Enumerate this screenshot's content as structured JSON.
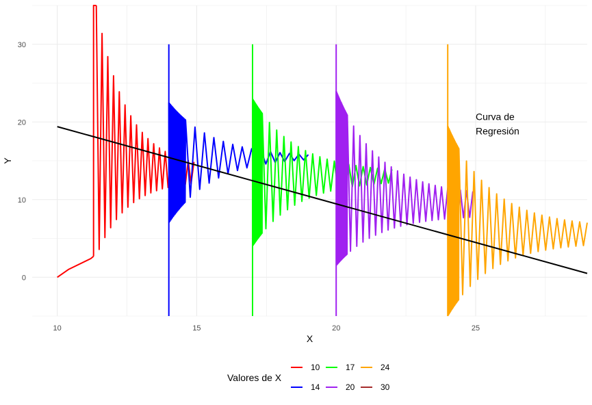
{
  "chart_data": {
    "type": "line",
    "title": "",
    "xlabel": "X",
    "ylabel": "Y",
    "xlim": [
      9.1,
      29
    ],
    "ylim": [
      -5,
      35
    ],
    "x_ticks": [
      10,
      15,
      20,
      25
    ],
    "y_ticks": [
      0,
      10,
      20,
      30
    ],
    "grid": true,
    "legend": {
      "title": "Valores de X",
      "position": "bottom",
      "entries": [
        {
          "label": "10",
          "color": "#ff0000"
        },
        {
          "label": "14",
          "color": "#0000ff"
        },
        {
          "label": "17",
          "color": "#00ff00"
        },
        {
          "label": "20",
          "color": "#a020f0"
        },
        {
          "label": "24",
          "color": "#ffa500"
        },
        {
          "label": "30",
          "color": "#a52a2a"
        }
      ]
    },
    "regression": {
      "x": [
        10,
        29
      ],
      "y": [
        19.4,
        0.5
      ],
      "color": "#000000"
    },
    "annotation": {
      "lines": [
        "Curva de",
        "Regresión"
      ],
      "x": 25,
      "y": 19.7
    },
    "series": [
      {
        "name": "10",
        "color": "#ff0000",
        "segments": [
          {
            "x": [
              10.0,
              10.4,
              11.2,
              11.3
            ],
            "y": [
              0.0,
              1.0,
              2.4,
              2.7
            ]
          },
          {
            "x": [
              11.3,
              11.3,
              11.4
            ],
            "y": [
              2.7,
              35.0,
              35.0
            ]
          }
        ],
        "oscillation": {
          "x_start": 11.4,
          "x_end": 14.9,
          "n": 34,
          "upper": {
            "from": 35.0,
            "to": 14.0
          },
          "lower": {
            "from": 2.7,
            "to": 12.5
          }
        }
      },
      {
        "name": "14",
        "color": "#0000ff",
        "segments": [
          {
            "x": [
              14.0,
              14.0
            ],
            "y": [
              -5.0,
              30.0
            ]
          }
        ],
        "oscillation": {
          "x_start": 14.0,
          "x_end": 19.0,
          "n": 26,
          "upper": {
            "from": 22.5,
            "to": 15.5
          },
          "lower": {
            "from": 7.0,
            "to": 15.5
          },
          "dense_until": 14.6
        }
      },
      {
        "name": "17",
        "color": "#00ff00",
        "segments": [
          {
            "x": [
              17.0,
              17.0
            ],
            "y": [
              -5.0,
              30.0
            ]
          }
        ],
        "oscillation": {
          "x_start": 17.0,
          "x_end": 22.0,
          "n": 36,
          "upper": {
            "from": 23.0,
            "to": 13.5
          },
          "lower": {
            "from": 4.0,
            "to": 12.5
          },
          "dense_until": 17.35
        }
      },
      {
        "name": "20",
        "color": "#a020f0",
        "segments": [
          {
            "x": [
              20.0,
              20.0
            ],
            "y": [
              -5.0,
              30.0
            ]
          }
        ],
        "oscillation": {
          "x_start": 20.0,
          "x_end": 24.9,
          "n": 40,
          "upper": {
            "from": 24.0,
            "to": 10.5
          },
          "lower": {
            "from": 1.5,
            "to": 8.0
          },
          "dense_until": 20.4
        }
      },
      {
        "name": "24",
        "color": "#ffa500",
        "segments": [
          {
            "x": [
              24.0,
              24.0
            ],
            "y": [
              -5.0,
              30.0
            ]
          }
        ],
        "oscillation": {
          "x_start": 24.0,
          "x_end": 29.0,
          "n": 34,
          "upper": {
            "from": 19.5,
            "to": 6.5
          },
          "lower": {
            "from": -5.0,
            "to": 4.5
          },
          "dense_until": 24.4
        }
      },
      {
        "name": "30",
        "color": "#a52a2a",
        "segments": [],
        "oscillation": null
      }
    ]
  }
}
